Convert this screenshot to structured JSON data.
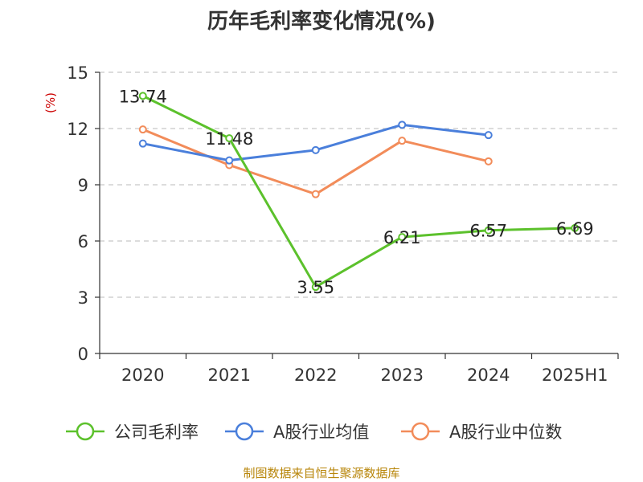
{
  "chart_data": {
    "type": "line",
    "title": "历年毛利率变化情况(%)",
    "ylabel": "(%)",
    "xlabel": "",
    "ylim": [
      0,
      15
    ],
    "yticks": [
      0,
      3,
      6,
      9,
      12,
      15
    ],
    "categories": [
      "2020",
      "2021",
      "2022",
      "2023",
      "2024",
      "2025H1"
    ],
    "series": [
      {
        "name": "公司毛利率",
        "color": "#5cc12c",
        "values": [
          13.74,
          11.48,
          3.55,
          6.21,
          6.57,
          6.69
        ],
        "labels": [
          "13.74",
          "11.48",
          "3.55",
          "6.21",
          "6.57",
          "6.69"
        ]
      },
      {
        "name": "A股行业均值",
        "color": "#4a7fdb",
        "values": [
          11.2,
          10.3,
          10.85,
          12.2,
          11.65,
          null
        ]
      },
      {
        "name": "A股行业中位数",
        "color": "#f28c5a",
        "values": [
          11.95,
          10.05,
          8.5,
          11.35,
          10.25,
          null
        ]
      }
    ],
    "grid": true,
    "legend_position": "bottom"
  },
  "source": "制图数据来自恒生聚源数据库"
}
